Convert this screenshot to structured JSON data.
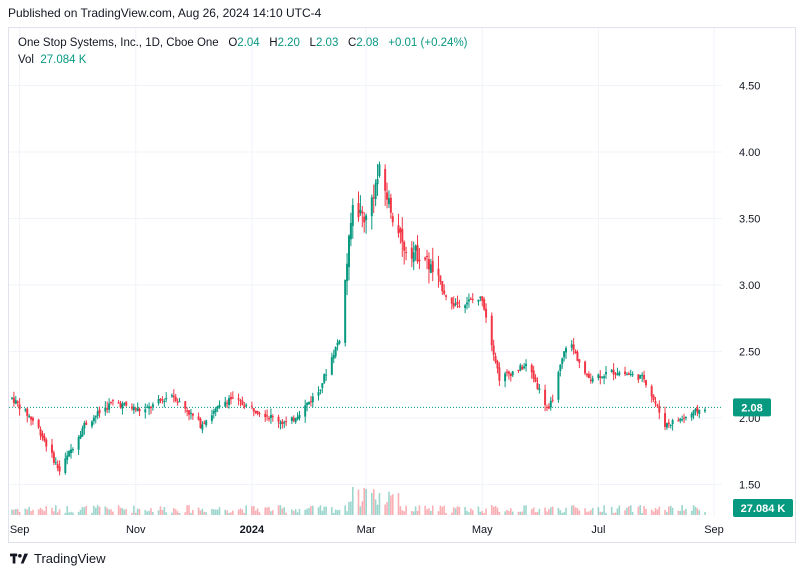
{
  "header": {
    "published": "Published on TradingView.com, Aug 26, 2024 14:10 UTC-4"
  },
  "legend": {
    "symbol": "One Stop Systems, Inc., 1D, Cboe One",
    "open_label": "O",
    "open": "2.04",
    "high_label": "H",
    "high": "2.20",
    "low_label": "L",
    "low": "2.03",
    "close_label": "C",
    "close": "2.08",
    "change": "+0.01 (+0.24%)",
    "vol_label": "Vol",
    "vol": "27.084 K"
  },
  "footer": {
    "brand": "TradingView"
  },
  "colors": {
    "up": "#089981",
    "down": "#f23645",
    "price_tag": "#089981",
    "grid": "#f0f3fa",
    "text": "#131722"
  },
  "chart_data": {
    "type": "candlestick",
    "title": "One Stop Systems, Inc., 1D, Cboe One",
    "y_ticks": [
      "4.50",
      "4.00",
      "3.50",
      "3.00",
      "2.50",
      "2.00",
      "1.50"
    ],
    "y_tick_values": [
      4.5,
      4.0,
      3.5,
      3.0,
      2.5,
      2.0,
      1.5
    ],
    "x_ticks": [
      "Sep",
      "Nov",
      "2024",
      "Mar",
      "May",
      "Jul",
      "Sep"
    ],
    "x_tick_bold": [
      false,
      false,
      true,
      false,
      false,
      false,
      false
    ],
    "ylim": [
      1.3,
      4.8
    ],
    "last_price": "2.08",
    "last_price_value": 2.08,
    "volume_label": "27.084 K",
    "approx_close_path": [
      {
        "date": "2023-08-28",
        "close": 2.15
      },
      {
        "date": "2023-09-10",
        "close": 1.95
      },
      {
        "date": "2023-09-22",
        "close": 1.6
      },
      {
        "date": "2023-10-05",
        "close": 1.95
      },
      {
        "date": "2023-10-20",
        "close": 2.12
      },
      {
        "date": "2023-11-05",
        "close": 2.05
      },
      {
        "date": "2023-11-20",
        "close": 2.18
      },
      {
        "date": "2023-12-05",
        "close": 1.95
      },
      {
        "date": "2023-12-20",
        "close": 2.15
      },
      {
        "date": "2024-01-05",
        "close": 2.05
      },
      {
        "date": "2024-01-20",
        "close": 1.95
      },
      {
        "date": "2024-02-05",
        "close": 2.2
      },
      {
        "date": "2024-02-16",
        "close": 2.6
      },
      {
        "date": "2024-02-23",
        "close": 3.6
      },
      {
        "date": "2024-03-01",
        "close": 3.5
      },
      {
        "date": "2024-03-08",
        "close": 3.85
      },
      {
        "date": "2024-03-20",
        "close": 3.3
      },
      {
        "date": "2024-04-01",
        "close": 3.2
      },
      {
        "date": "2024-04-15",
        "close": 2.85
      },
      {
        "date": "2024-05-01",
        "close": 2.9
      },
      {
        "date": "2024-05-10",
        "close": 2.3
      },
      {
        "date": "2024-05-25",
        "close": 2.4
      },
      {
        "date": "2024-06-05",
        "close": 2.05
      },
      {
        "date": "2024-06-15",
        "close": 2.6
      },
      {
        "date": "2024-06-25",
        "close": 2.3
      },
      {
        "date": "2024-07-10",
        "close": 2.35
      },
      {
        "date": "2024-07-25",
        "close": 2.3
      },
      {
        "date": "2024-08-05",
        "close": 1.95
      },
      {
        "date": "2024-08-15",
        "close": 2.0
      },
      {
        "date": "2024-08-26",
        "close": 2.08
      }
    ]
  }
}
